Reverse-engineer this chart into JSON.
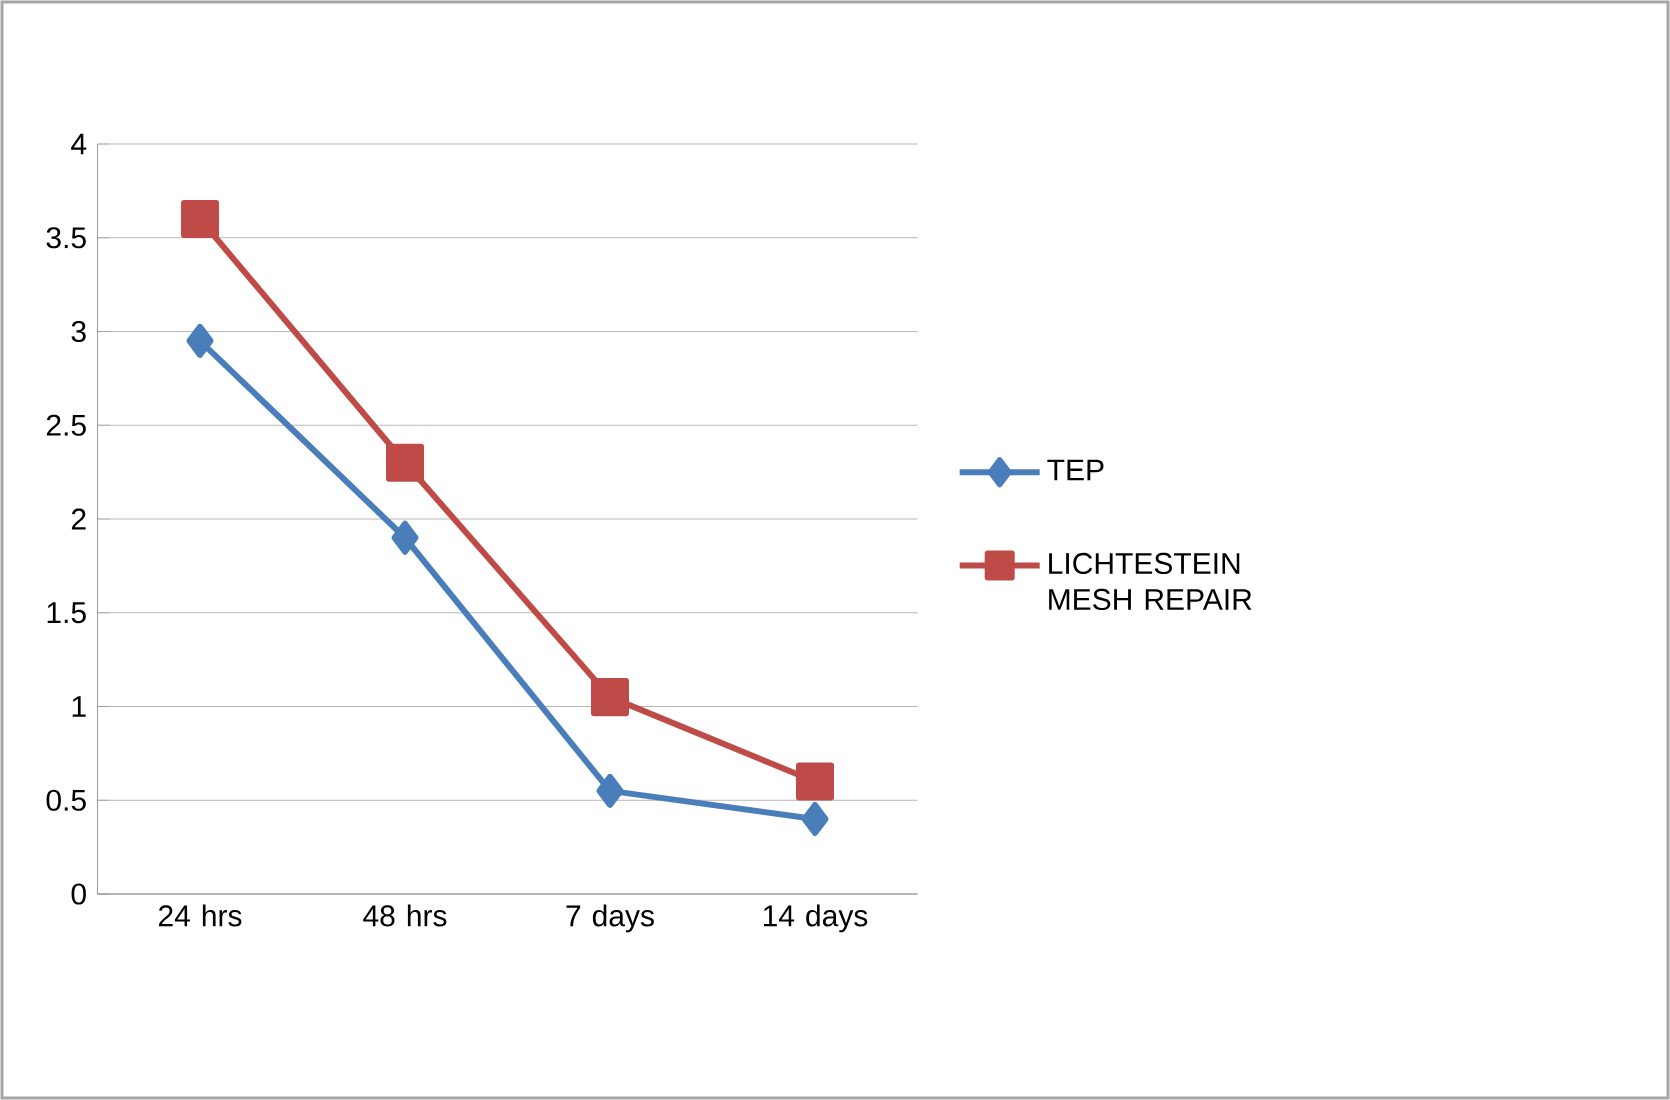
{
  "chart_data": {
    "type": "line",
    "categories": [
      "24 hrs",
      "48 hrs",
      "7 days",
      "14 days"
    ],
    "series": [
      {
        "name": "TEP",
        "color": "#4a7ebb",
        "marker": "diamond",
        "values": [
          2.95,
          1.9,
          0.55,
          0.4
        ]
      },
      {
        "name": "LICHTESTEIN MESH REPAIR",
        "color": "#be4b48",
        "marker": "square",
        "values": [
          3.6,
          2.3,
          1.05,
          0.6
        ]
      }
    ],
    "ylim": [
      0,
      4
    ],
    "yticks": [
      0,
      0.5,
      1,
      1.5,
      2,
      2.5,
      3,
      3.5,
      4
    ],
    "grid": "y",
    "legend": "right",
    "line_style": "solid"
  }
}
